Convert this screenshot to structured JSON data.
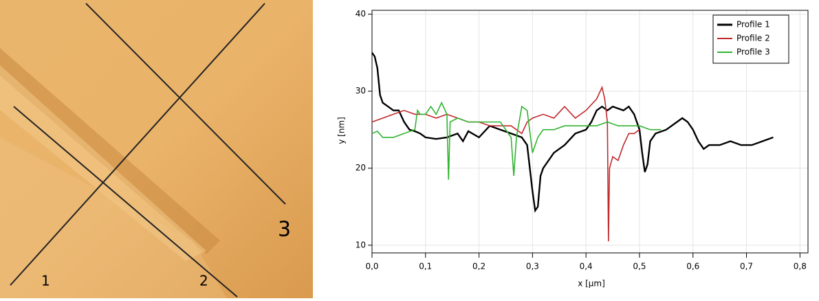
{
  "image": {
    "labels": [
      "1",
      "2",
      "3"
    ]
  },
  "chart_data": {
    "type": "line",
    "xlabel": "x [µm]",
    "ylabel": "y [nm]",
    "xlim": [
      0,
      0.815
    ],
    "ylim": [
      9,
      40.5
    ],
    "xticks": [
      {
        "value": 0,
        "label": "0,0"
      },
      {
        "value": 0.1,
        "label": "0,1"
      },
      {
        "value": 0.2,
        "label": "0,2"
      },
      {
        "value": 0.3,
        "label": "0,3"
      },
      {
        "value": 0.4,
        "label": "0,4"
      },
      {
        "value": 0.5,
        "label": "0,5"
      },
      {
        "value": 0.6,
        "label": "0,6"
      },
      {
        "value": 0.7,
        "label": "0,7"
      },
      {
        "value": 0.8,
        "label": "0,8"
      }
    ],
    "yticks": [
      10,
      20,
      30,
      40
    ],
    "grid": true,
    "legend": "upper right",
    "series": [
      {
        "name": "Profile 1",
        "color": "#000000",
        "x": [
          0,
          0.005,
          0.01,
          0.015,
          0.02,
          0.03,
          0.04,
          0.05,
          0.06,
          0.07,
          0.08,
          0.09,
          0.1,
          0.12,
          0.14,
          0.16,
          0.17,
          0.18,
          0.2,
          0.22,
          0.24,
          0.26,
          0.28,
          0.29,
          0.295,
          0.3,
          0.305,
          0.31,
          0.315,
          0.32,
          0.34,
          0.36,
          0.38,
          0.4,
          0.41,
          0.42,
          0.43,
          0.44,
          0.45,
          0.47,
          0.48,
          0.49,
          0.5,
          0.505,
          0.51,
          0.515,
          0.52,
          0.53,
          0.55,
          0.57,
          0.58,
          0.59,
          0.6,
          0.61,
          0.62,
          0.63,
          0.65,
          0.67,
          0.69,
          0.71,
          0.73,
          0.75
        ],
        "values": [
          35,
          34.5,
          33,
          29.5,
          28.5,
          28,
          27.5,
          27.5,
          26,
          25,
          24.8,
          24.5,
          24,
          23.8,
          24,
          24.5,
          23.5,
          24.8,
          24,
          25.5,
          25,
          24.5,
          24,
          23,
          20,
          17,
          14.5,
          15,
          19,
          20,
          22,
          23,
          24.5,
          25,
          26,
          27.5,
          28,
          27.5,
          28,
          27.5,
          28,
          27,
          25,
          22,
          19.5,
          20.5,
          23.5,
          24.5,
          25,
          26,
          26.5,
          26,
          25,
          23.5,
          22.5,
          23,
          23,
          23.5,
          23,
          23,
          23.5,
          24
        ]
      },
      {
        "name": "Profile 2",
        "color": "#c0282b",
        "x": [
          0,
          0.02,
          0.04,
          0.06,
          0.08,
          0.1,
          0.12,
          0.14,
          0.16,
          0.18,
          0.2,
          0.22,
          0.24,
          0.26,
          0.28,
          0.29,
          0.3,
          0.32,
          0.34,
          0.36,
          0.38,
          0.4,
          0.42,
          0.43,
          0.435,
          0.44,
          0.442,
          0.444,
          0.45,
          0.46,
          0.47,
          0.48,
          0.49,
          0.5
        ],
        "values": [
          26,
          26.5,
          27,
          27.5,
          27,
          27,
          26.5,
          27,
          26.5,
          26,
          26,
          25.5,
          25.5,
          25.5,
          24.5,
          26,
          26.5,
          27,
          26.5,
          28,
          26.5,
          27.5,
          29,
          30.5,
          29,
          26,
          10.5,
          20,
          21.5,
          21,
          23,
          24.5,
          24.5,
          25
        ]
      },
      {
        "name": "Profile 3",
        "color": "#2fb32f",
        "x": [
          0,
          0.01,
          0.02,
          0.04,
          0.06,
          0.08,
          0.085,
          0.09,
          0.1,
          0.11,
          0.12,
          0.13,
          0.14,
          0.143,
          0.146,
          0.16,
          0.18,
          0.2,
          0.22,
          0.24,
          0.26,
          0.265,
          0.27,
          0.28,
          0.29,
          0.3,
          0.31,
          0.32,
          0.34,
          0.36,
          0.38,
          0.4,
          0.42,
          0.44,
          0.46,
          0.48,
          0.5,
          0.52,
          0.54
        ],
        "values": [
          24.5,
          24.8,
          24,
          24,
          24.5,
          25,
          27.5,
          27,
          27,
          28,
          27,
          28.5,
          27,
          18.5,
          26,
          26.5,
          26,
          26,
          26,
          26,
          24,
          19,
          24,
          28,
          27.5,
          22,
          24,
          25,
          25,
          25.5,
          25.5,
          25.5,
          25.5,
          26,
          25.5,
          25.5,
          25.5,
          25,
          25
        ]
      }
    ]
  }
}
